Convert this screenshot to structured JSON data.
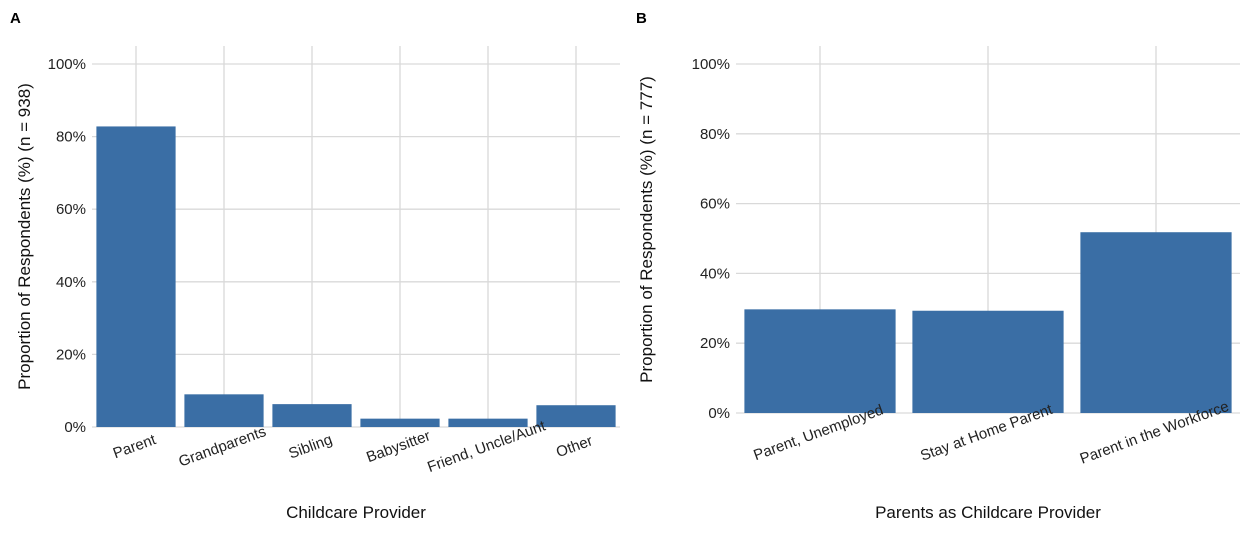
{
  "colors": {
    "bar": "#3a6ea5",
    "grid": "#d9d9d9",
    "text": "#222222"
  },
  "chart_data": [
    {
      "panel": "A",
      "type": "bar",
      "categories": [
        "Parent",
        "Grandparents",
        "Sibling",
        "Babysitter",
        "Friend, Uncle/Aunt",
        "Other"
      ],
      "values": [
        82.8,
        9.0,
        6.3,
        2.3,
        2.3,
        6.0
      ],
      "value_unit": "%",
      "xlabel": "Childcare Provider",
      "ylabel": "Proportion of Respondents (%) (n = 938)",
      "ylim": [
        0,
        100
      ],
      "yticks": [
        "0%",
        "20%",
        "40%",
        "60%",
        "80%",
        "100%"
      ],
      "grid": true,
      "legend": "none"
    },
    {
      "panel": "B",
      "type": "bar",
      "categories": [
        "Parent, Unemployed",
        "Stay at Home Parent",
        "Parent in the Workforce"
      ],
      "values": [
        29.7,
        29.3,
        51.8
      ],
      "value_unit": "%",
      "xlabel": "Parents as Childcare Provider",
      "ylabel": "Proportion of Respondents (%) (n = 777)",
      "ylim": [
        0,
        100
      ],
      "yticks": [
        "0%",
        "20%",
        "40%",
        "60%",
        "80%",
        "100%"
      ],
      "grid": true,
      "legend": "none"
    }
  ]
}
